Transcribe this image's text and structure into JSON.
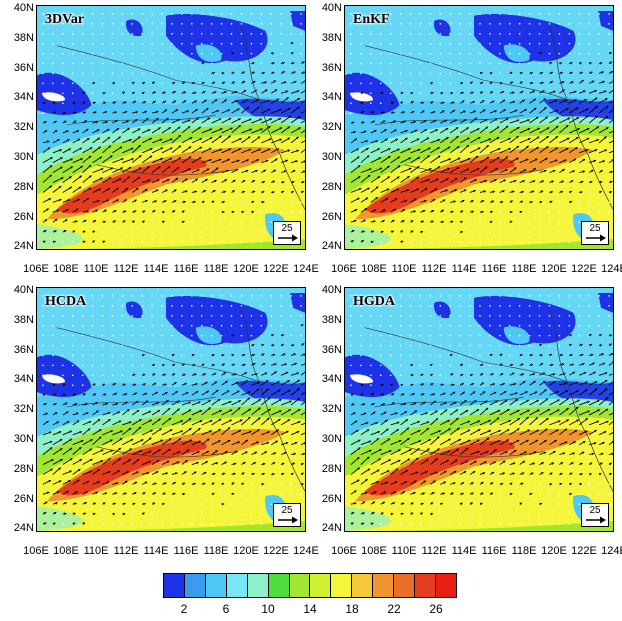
{
  "panels": [
    {
      "label": "3DVar",
      "ref_vector": "25"
    },
    {
      "label": "EnKF",
      "ref_vector": "25"
    },
    {
      "label": "HCDA",
      "ref_vector": "25"
    },
    {
      "label": "HGDA",
      "ref_vector": "25"
    }
  ],
  "lat_labels": [
    "40N",
    "38N",
    "36N",
    "34N",
    "32N",
    "30N",
    "28N",
    "26N",
    "24N"
  ],
  "lon_labels": [
    "106E",
    "108E",
    "110E",
    "112E",
    "114E",
    "116E",
    "118E",
    "120E",
    "122E",
    "124E"
  ],
  "colorbar": {
    "colors": [
      "#1e32e6",
      "#3c9bf0",
      "#50c8f5",
      "#78e6f5",
      "#8cf0c8",
      "#50dc3c",
      "#a0e632",
      "#d2f032",
      "#f5f53c",
      "#f5c83c",
      "#f0962d",
      "#eb6e28",
      "#e63c1e",
      "#e61e14"
    ],
    "labels": [
      "2",
      "6",
      "10",
      "14",
      "18",
      "22",
      "26"
    ]
  },
  "field_colors": {
    "blue": "#1e32e6",
    "light_blue": "#50c8f5",
    "cyan": "#78e6f5",
    "green": "#8cf0c8",
    "lime": "#a0e632",
    "yellow": "#f5f53c",
    "orange": "#f0962d",
    "red": "#e63c1e",
    "white": "#ffffff"
  }
}
